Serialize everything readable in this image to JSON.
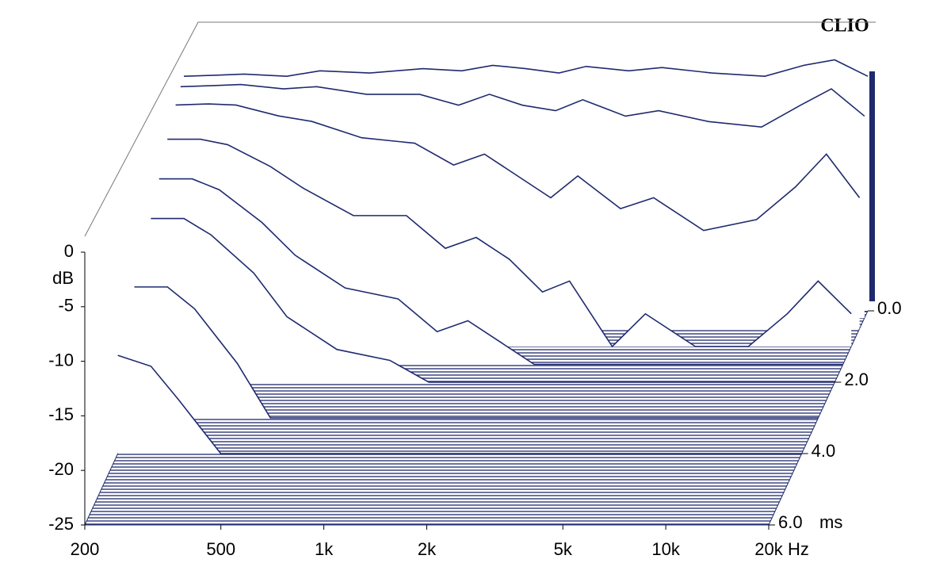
{
  "chart_data": {
    "type": "waterfall",
    "brand": "CLIO",
    "x_unit": "Hz",
    "y_unit": "dB",
    "z_unit": "ms",
    "xlim": [
      200,
      20000
    ],
    "log_x": true,
    "xticks": [
      200,
      500,
      {
        "value": 1000,
        "label": "1k"
      },
      {
        "value": 2000,
        "label": "2k"
      },
      {
        "value": 5000,
        "label": "5k"
      },
      {
        "value": 10000,
        "label": "10k"
      },
      {
        "value": 20000,
        "label": "20k"
      }
    ],
    "ylim": [
      -25,
      0
    ],
    "yticks": [
      0,
      -5,
      -10,
      -15,
      -20,
      -25
    ],
    "zlim": [
      0,
      6
    ],
    "zticks": [
      {
        "value": 0,
        "label": "0.0"
      },
      {
        "value": 2,
        "label": "2.0"
      },
      {
        "value": 4,
        "label": "4.0"
      },
      {
        "value": 6,
        "label": "6.0"
      }
    ],
    "color": "#1f2a6e",
    "x": [
      200,
      250,
      300,
      400,
      500,
      700,
      1000,
      1300,
      1600,
      2000,
      2500,
      3000,
      4000,
      5000,
      7000,
      10000,
      13000,
      16000,
      20000
    ],
    "slices": [
      {
        "time": 0,
        "values": [
          -3.5,
          -3.4,
          -3.3,
          -3.5,
          -3.0,
          -3.2,
          -2.8,
          -3.0,
          -2.5,
          -2.8,
          -3.2,
          -2.6,
          -3.0,
          -2.7,
          -3.2,
          -3.5,
          -2.5,
          -2.0,
          -3.5
        ]
      },
      {
        "time": 0.2,
        "values": [
          -3.8,
          -3.7,
          -3.6,
          -4.0,
          -3.8,
          -4.5,
          -4.5,
          -5.5,
          -4.5,
          -5.5,
          -6.0,
          -5.0,
          -6.5,
          -6.0,
          -7.0,
          -7.5,
          -5.5,
          -4.0,
          -6.5
        ]
      },
      {
        "time": 0.5,
        "values": [
          -4.5,
          -4.4,
          -4.5,
          -5.5,
          -6.0,
          -7.5,
          -8.0,
          -10,
          -9,
          -11,
          -13,
          -11,
          -14,
          -13,
          -16,
          -15,
          -12,
          -9,
          -13
        ]
      },
      {
        "time": 1,
        "values": [
          -6,
          -6,
          -6.5,
          -8.5,
          -10.5,
          -13,
          -13,
          -16,
          -15,
          -17,
          -20,
          -19,
          -25,
          -22,
          -25,
          -25,
          -22,
          -19,
          -22
        ]
      },
      {
        "time": 1.5,
        "values": [
          -8,
          -8,
          -9,
          -12,
          -15,
          -18,
          -19,
          -22,
          -21,
          -23,
          -25,
          -25,
          -25,
          -25,
          -25,
          -25,
          -25,
          -25,
          -25
        ]
      },
      {
        "time": 2,
        "values": [
          -10,
          -10,
          -11.5,
          -15,
          -19,
          -22,
          -23,
          -25,
          -25,
          -25,
          -25,
          -25,
          -25,
          -25,
          -25,
          -25,
          -25,
          -25,
          -25
        ]
      },
      {
        "time": 3,
        "values": [
          -13,
          -13,
          -15,
          -20,
          -25,
          -25,
          -25,
          -25,
          -25,
          -25,
          -25,
          -25,
          -25,
          -25,
          -25,
          -25,
          -25,
          -25,
          -25
        ]
      },
      {
        "time": 4,
        "values": [
          -16,
          -17,
          -20,
          -25,
          -25,
          -25,
          -25,
          -25,
          -25,
          -25,
          -25,
          -25,
          -25,
          -25,
          -25,
          -25,
          -25,
          -25,
          -25
        ]
      }
    ]
  }
}
